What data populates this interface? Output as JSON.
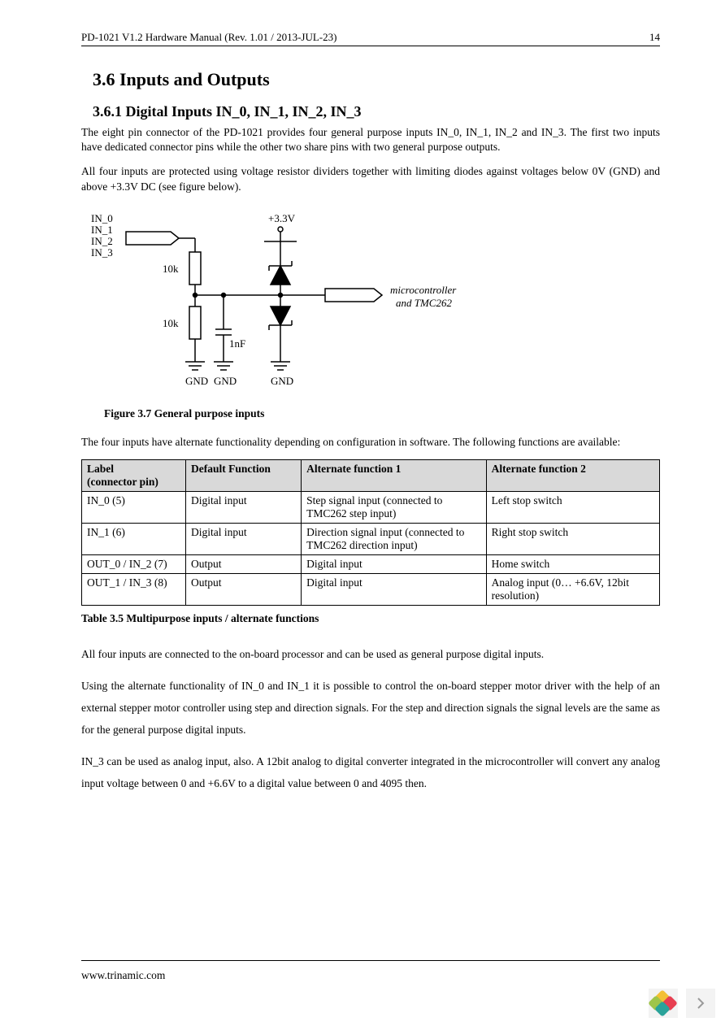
{
  "header": {
    "left": "PD-1021 V1.2 Hardware Manual (Rev. 1.01 / 2013-JUL-23)",
    "page": "14"
  },
  "section": {
    "number_title": "3.6  Inputs and Outputs",
    "sub_number_title": "3.6.1  Digital Inputs IN_0, IN_1, IN_2, IN_3"
  },
  "para1": "The eight pin connector of the PD-1021 provides four general purpose inputs IN_0, IN_1, IN_2 and IN_3. The first two inputs have dedicated connector pins while the other two share pins with two general purpose outputs.",
  "para2": "All four inputs are protected using voltage resistor dividers together with limiting diodes against voltages below 0V (GND) and above +3.3V DC (see figure below).",
  "circuit": {
    "in_labels": [
      "IN_0",
      "IN_1",
      "IN_2",
      "IN_3"
    ],
    "r_value": "10k",
    "cap_value": "1nF",
    "vcc": "+3.3V",
    "gnd": "GND",
    "out_label1": "microcontroller",
    "out_label2": "and TMC262",
    "stroke": "#000000",
    "linewidth": 1.5
  },
  "figure_caption": "Figure 3.7 General purpose inputs",
  "para3": "The four inputs have alternate functionality depending on configuration in software. The following functions are available:",
  "table": {
    "headers": [
      "Label (connector pin)",
      "Default Function",
      "Alternate function 1",
      "Alternate function 2"
    ],
    "header_bg": "#d9d9d9",
    "rows": [
      [
        "IN_0 (5)",
        "Digital input",
        "Step signal input (connected to TMC262 step input)",
        "Left stop switch"
      ],
      [
        "IN_1 (6)",
        "Digital input",
        "Direction signal input (connected to TMC262 direction input)",
        "Right stop switch"
      ],
      [
        "OUT_0 / IN_2 (7)",
        "Output",
        "Digital input",
        "Home switch"
      ],
      [
        "OUT_1 / IN_3 (8)",
        "Output",
        "Digital input",
        "Analog input (0… +6.6V, 12bit resolution)"
      ]
    ]
  },
  "table_caption": "Table 3.5 Multipurpose inputs / alternate functions",
  "para4": "All four inputs are connected to the on-board processor and can be used as general purpose digital inputs.",
  "para5": "Using the alternate  functionality of  IN_0 and IN_1 it is possible to control the  on-board stepper  motor driver with the help of an external stepper motor controller using step and direction signals. For the step and direction signals the signal levels are the same as for the general purpose digital inputs.",
  "para6": "IN_3 can be used as analog input, also. A 12bit analog to digital converter integrated in the microcontroller will convert any analog input voltage between 0 and +6.6V to a digital value between 0 and 4095 then.",
  "footer": "www.trinamic.com",
  "nav_colors": {
    "p_green": "#9fc549",
    "p_yellow": "#f3c034",
    "p_red": "#e73f51",
    "p_teal": "#2aa39a",
    "chevron": "#9a9a9a",
    "btn_bg": "#f3f3f3"
  }
}
